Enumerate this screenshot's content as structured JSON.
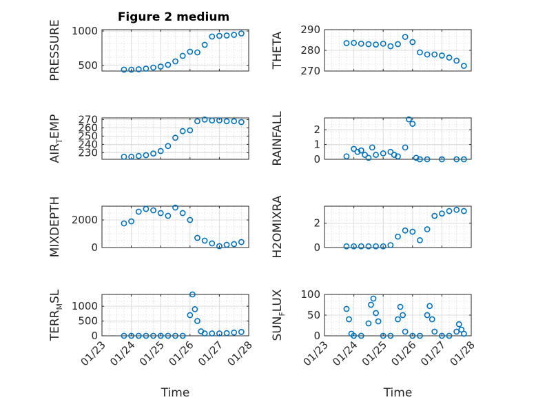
{
  "title": "Figure 2 medium",
  "colors": {
    "marker": "#0072bd",
    "axis": "#262626"
  },
  "xaxis": {
    "label": "Time",
    "range": [
      "2024-01-23",
      "2024-01-28"
    ],
    "tick_labels": [
      "01/23",
      "01/24",
      "01/25",
      "01/26",
      "01/27",
      "01/28"
    ]
  },
  "chart_data": [
    {
      "type": "scatter",
      "ylabel": "PRESSURE",
      "ylim": [
        420,
        1020
      ],
      "yticks": [
        500,
        1000
      ],
      "grid": true,
      "x": [
        "2024-01-23 18:00",
        "2024-01-24 00:00",
        "2024-01-24 06:00",
        "2024-01-24 12:00",
        "2024-01-24 18:00",
        "2024-01-25 00:00",
        "2024-01-25 06:00",
        "2024-01-25 12:00",
        "2024-01-25 18:00",
        "2024-01-26 00:00",
        "2024-01-26 06:00",
        "2024-01-26 12:00",
        "2024-01-26 18:00",
        "2024-01-27 00:00",
        "2024-01-27 06:00",
        "2024-01-27 12:00",
        "2024-01-27 18:00"
      ],
      "y": [
        440,
        440,
        445,
        455,
        470,
        485,
        510,
        560,
        640,
        700,
        690,
        800,
        920,
        930,
        935,
        945,
        965
      ]
    },
    {
      "type": "scatter",
      "ylabel": "THETA",
      "ylim": [
        270,
        290
      ],
      "yticks": [
        270,
        280,
        290
      ],
      "grid": true,
      "x": [
        "2024-01-23 18:00",
        "2024-01-24 00:00",
        "2024-01-24 06:00",
        "2024-01-24 12:00",
        "2024-01-24 18:00",
        "2024-01-25 00:00",
        "2024-01-25 06:00",
        "2024-01-25 12:00",
        "2024-01-25 18:00",
        "2024-01-26 00:00",
        "2024-01-26 06:00",
        "2024-01-26 12:00",
        "2024-01-26 18:00",
        "2024-01-27 00:00",
        "2024-01-27 06:00",
        "2024-01-27 12:00",
        "2024-01-27 18:00"
      ],
      "y": [
        283.5,
        283.6,
        283.2,
        283.0,
        282.8,
        283.2,
        282.0,
        283.0,
        286.5,
        284.0,
        279.0,
        278.0,
        278.0,
        277.5,
        276.5,
        275.0,
        272.5
      ]
    },
    {
      "type": "scatter",
      "ylabel": "AIR",
      "ylabel_sub": "T",
      "ylabel_rest": "EMP",
      "ylim": [
        222,
        272
      ],
      "yticks": [
        230,
        240,
        250,
        260,
        270
      ],
      "grid": true,
      "x": [
        "2024-01-23 18:00",
        "2024-01-24 00:00",
        "2024-01-24 06:00",
        "2024-01-24 12:00",
        "2024-01-24 18:00",
        "2024-01-25 00:00",
        "2024-01-25 06:00",
        "2024-01-25 12:00",
        "2024-01-25 18:00",
        "2024-01-26 00:00",
        "2024-01-26 06:00",
        "2024-01-26 12:00",
        "2024-01-26 18:00",
        "2024-01-27 00:00",
        "2024-01-27 06:00",
        "2024-01-27 12:00",
        "2024-01-27 18:00"
      ],
      "y": [
        225,
        225,
        226,
        227,
        229,
        232,
        238,
        248,
        256,
        257,
        268,
        270,
        269,
        269,
        268,
        268,
        267
      ]
    },
    {
      "type": "scatter",
      "ylabel": "RAINFALL",
      "ylim": [
        0,
        2.8
      ],
      "yticks": [
        0,
        1,
        2
      ],
      "grid": true,
      "x": [
        "2024-01-23 18:00",
        "2024-01-24 00:00",
        "2024-01-24 03:00",
        "2024-01-24 06:00",
        "2024-01-24 09:00",
        "2024-01-24 12:00",
        "2024-01-24 15:00",
        "2024-01-24 18:00",
        "2024-01-25 00:00",
        "2024-01-25 06:00",
        "2024-01-25 09:00",
        "2024-01-25 12:00",
        "2024-01-25 18:00",
        "2024-01-25 21:00",
        "2024-01-26 00:00",
        "2024-01-26 03:00",
        "2024-01-26 06:00",
        "2024-01-26 12:00",
        "2024-01-27 00:00",
        "2024-01-27 12:00",
        "2024-01-27 18:00"
      ],
      "y": [
        0.2,
        0.7,
        0.5,
        0.6,
        0.3,
        0.1,
        0.8,
        0.3,
        0.4,
        0.5,
        0.3,
        0.2,
        0.8,
        2.7,
        2.4,
        0.1,
        0.0,
        0.0,
        0.0,
        0.0,
        0.0
      ]
    },
    {
      "type": "scatter",
      "ylabel": "MIXDEPTH",
      "ylim": [
        0,
        3000
      ],
      "yticks": [
        0,
        2000
      ],
      "grid": true,
      "x": [
        "2024-01-23 18:00",
        "2024-01-24 00:00",
        "2024-01-24 06:00",
        "2024-01-24 12:00",
        "2024-01-24 18:00",
        "2024-01-25 00:00",
        "2024-01-25 06:00",
        "2024-01-25 12:00",
        "2024-01-25 18:00",
        "2024-01-26 00:00",
        "2024-01-26 06:00",
        "2024-01-26 12:00",
        "2024-01-26 18:00",
        "2024-01-27 00:00",
        "2024-01-27 06:00",
        "2024-01-27 12:00",
        "2024-01-27 18:00"
      ],
      "y": [
        1750,
        1900,
        2600,
        2800,
        2700,
        2500,
        2300,
        2900,
        2500,
        2000,
        700,
        500,
        300,
        100,
        200,
        250,
        400
      ]
    },
    {
      "type": "scatter",
      "ylabel": "H2OMIXRA",
      "ylim": [
        0,
        3.4
      ],
      "yticks": [
        0,
        2
      ],
      "grid": true,
      "x": [
        "2024-01-23 18:00",
        "2024-01-24 00:00",
        "2024-01-24 06:00",
        "2024-01-24 12:00",
        "2024-01-24 18:00",
        "2024-01-25 00:00",
        "2024-01-25 06:00",
        "2024-01-25 12:00",
        "2024-01-25 18:00",
        "2024-01-26 00:00",
        "2024-01-26 06:00",
        "2024-01-26 12:00",
        "2024-01-26 18:00",
        "2024-01-27 00:00",
        "2024-01-27 06:00",
        "2024-01-27 12:00",
        "2024-01-27 18:00"
      ],
      "y": [
        0.1,
        0.1,
        0.1,
        0.1,
        0.1,
        0.1,
        0.2,
        0.9,
        1.4,
        1.3,
        0.6,
        1.5,
        2.6,
        2.8,
        3.0,
        3.1,
        3.0
      ]
    },
    {
      "type": "scatter",
      "ylabel": "TERR",
      "ylabel_sub": "M",
      "ylabel_rest": "SL",
      "ylim": [
        0,
        1400
      ],
      "yticks": [
        0,
        500,
        1000
      ],
      "grid": true,
      "x": [
        "2024-01-23 18:00",
        "2024-01-24 00:00",
        "2024-01-24 06:00",
        "2024-01-24 12:00",
        "2024-01-24 18:00",
        "2024-01-25 00:00",
        "2024-01-25 06:00",
        "2024-01-25 12:00",
        "2024-01-25 18:00",
        "2024-01-26 00:00",
        "2024-01-26 02:00",
        "2024-01-26 04:00",
        "2024-01-26 06:00",
        "2024-01-26 09:00",
        "2024-01-26 12:00",
        "2024-01-26 18:00",
        "2024-01-27 00:00",
        "2024-01-27 06:00",
        "2024-01-27 12:00",
        "2024-01-27 18:00"
      ],
      "y": [
        0,
        0,
        0,
        0,
        0,
        0,
        0,
        0,
        0,
        700,
        1400,
        900,
        500,
        150,
        80,
        80,
        80,
        90,
        110,
        130
      ]
    },
    {
      "type": "scatter",
      "ylabel": "SUN",
      "ylabel_sub": "F",
      "ylabel_rest": "LUX",
      "ylim": [
        0,
        100
      ],
      "yticks": [
        0,
        50,
        100
      ],
      "grid": true,
      "x": [
        "2024-01-23 18:00",
        "2024-01-23 20:00",
        "2024-01-23 22:00",
        "2024-01-24 00:00",
        "2024-01-24 06:00",
        "2024-01-24 12:00",
        "2024-01-24 14:00",
        "2024-01-24 16:00",
        "2024-01-24 18:00",
        "2024-01-24 20:00",
        "2024-01-25 00:00",
        "2024-01-25 06:00",
        "2024-01-25 12:00",
        "2024-01-25 14:00",
        "2024-01-25 16:00",
        "2024-01-25 18:00",
        "2024-01-26 00:00",
        "2024-01-26 06:00",
        "2024-01-26 12:00",
        "2024-01-26 14:00",
        "2024-01-26 16:00",
        "2024-01-26 18:00",
        "2024-01-27 00:00",
        "2024-01-27 06:00",
        "2024-01-27 12:00",
        "2024-01-27 14:00",
        "2024-01-27 16:00",
        "2024-01-27 18:00"
      ],
      "y": [
        65,
        40,
        5,
        0,
        0,
        30,
        75,
        90,
        55,
        35,
        0,
        0,
        40,
        70,
        50,
        10,
        0,
        0,
        50,
        72,
        40,
        10,
        0,
        0,
        10,
        28,
        15,
        5
      ]
    }
  ]
}
